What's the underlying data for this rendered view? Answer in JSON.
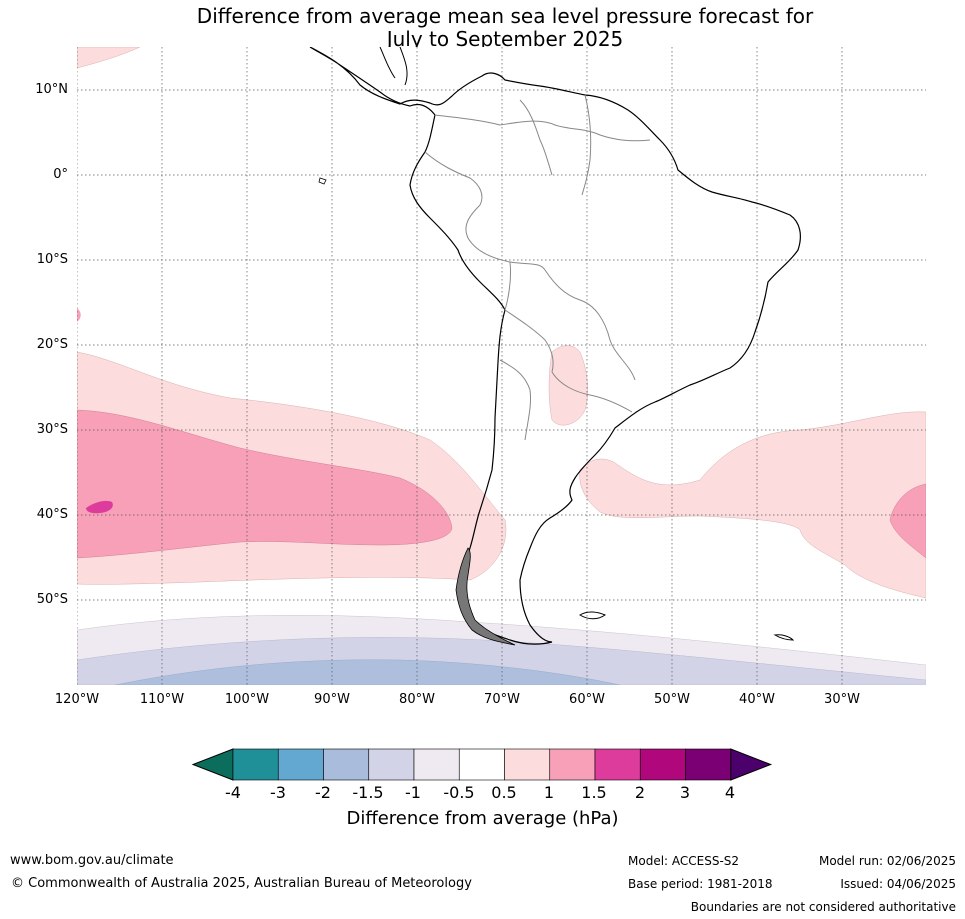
{
  "title": {
    "line1": "Difference from average mean sea level pressure forecast for",
    "line2": "July to September 2025"
  },
  "map": {
    "lat_labels": [
      "10°N",
      "0°",
      "10°S",
      "20°S",
      "30°S",
      "40°S",
      "50°S"
    ],
    "lon_labels": [
      "120°W",
      "110°W",
      "100°W",
      "90°W",
      "80°W",
      "70°W",
      "60°W",
      "50°W",
      "40°W",
      "30°W"
    ],
    "lat_range": [
      -60,
      15
    ],
    "lon_range": [
      -120,
      -20
    ],
    "grid": "dotted",
    "regions_note_colors": {
      "light_pink": "#fcdcdc",
      "mid_pink": "#f7a0b8",
      "magenta": "#de3c9c",
      "lavender_light": "#efeaf1",
      "lavender": "#d3d3e8",
      "blue_grey": "#adbfdd"
    }
  },
  "colorbar": {
    "colors": [
      "#0b6e5c",
      "#1f9097",
      "#63a8d0",
      "#a9bcdc",
      "#d3d3e8",
      "#efeaf1",
      "#ffffff",
      "#fcdcdc",
      "#f7a0b8",
      "#de3c9c",
      "#b0087c",
      "#7a0073",
      "#4b006b"
    ],
    "ticks": [
      "-4",
      "-3",
      "-2",
      "-1.5",
      "-1",
      "-0.5",
      "0.5",
      "1",
      "1.5",
      "2",
      "3",
      "4"
    ],
    "label": "Difference from average (hPa)"
  },
  "footer": {
    "url": "www.bom.gov.au/climate",
    "copyright": "© Commonwealth of Australia 2025, Australian Bureau of Meteorology",
    "model": "Model: ACCESS-S2",
    "base_period": "Base period: 1981-2018",
    "model_run": "Model run: 02/06/2025",
    "issued": "Issued: 04/06/2025",
    "disclaimer": "Boundaries are not considered authoritative"
  }
}
